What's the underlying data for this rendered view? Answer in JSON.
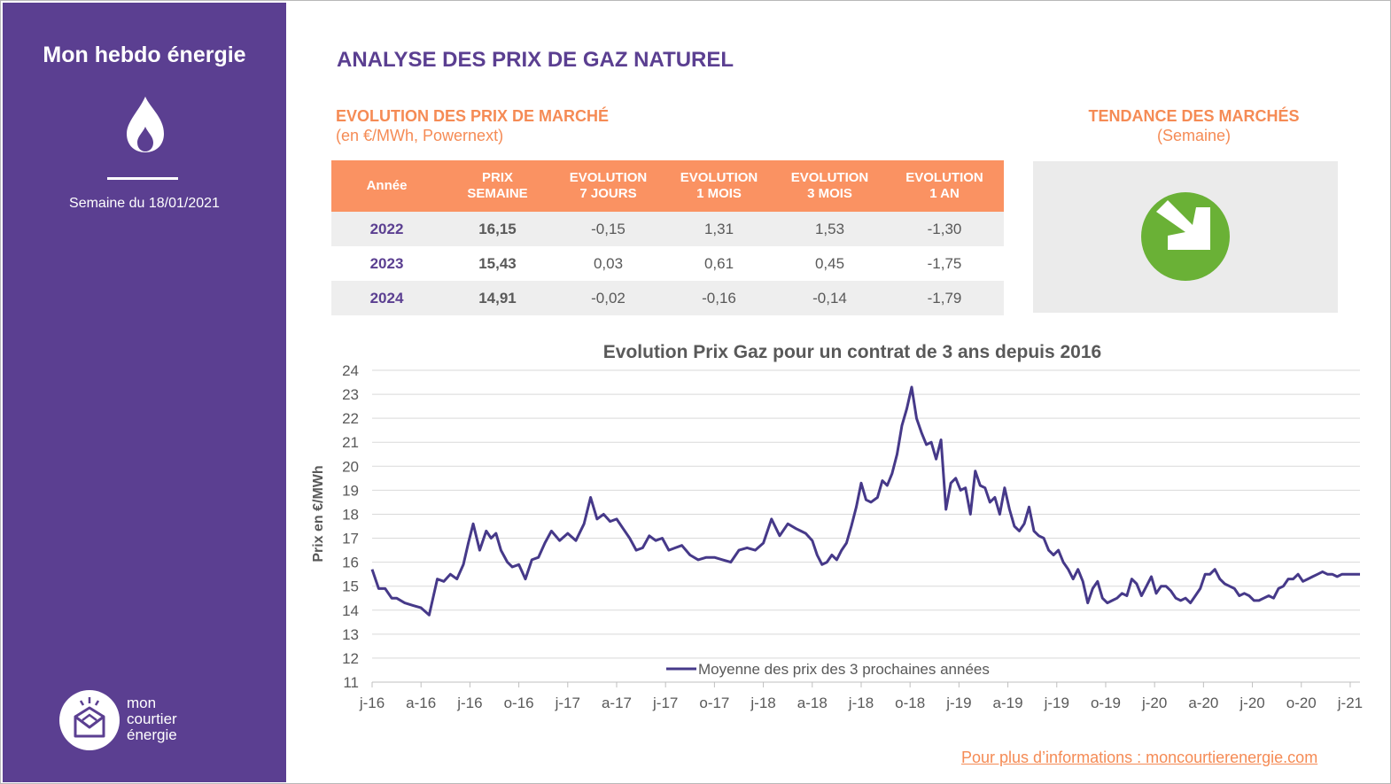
{
  "sidebar": {
    "title": "Mon hebdo énergie",
    "week": "Semaine du 18/01/2021",
    "logo_lines": [
      "mon",
      "courtier",
      "énergie"
    ]
  },
  "page_title": "ANALYSE DES PRIX DE GAZ NATUREL",
  "market_table": {
    "title": "EVOLUTION DES PRIX DE MARCHÉ",
    "subtitle": "(en €/MWh, Powernext)",
    "headers": [
      [
        "Année"
      ],
      [
        "PRIX",
        "SEMAINE"
      ],
      [
        "EVOLUTION",
        "7 JOURS"
      ],
      [
        "EVOLUTION",
        "1 MOIS"
      ],
      [
        "EVOLUTION",
        "3 MOIS"
      ],
      [
        "EVOLUTION",
        "1 AN"
      ]
    ],
    "rows": [
      [
        "2022",
        "16,15",
        "-0,15",
        "1,31",
        "1,53",
        "-1,30"
      ],
      [
        "2023",
        "15,43",
        "0,03",
        "0,61",
        "0,45",
        "-1,75"
      ],
      [
        "2024",
        "14,91",
        "-0,02",
        "-0,16",
        "-0,14",
        "-1,79"
      ]
    ]
  },
  "trend": {
    "title": "TENDANCE DES MARCHÉS",
    "subtitle": "(Semaine)",
    "direction": "down",
    "icon": "arrow-down-right-icon",
    "color": "#6ab136"
  },
  "colors": {
    "brand_purple": "#5b3f91",
    "accent_orange": "#f58b55",
    "table_header": "#fa9262",
    "series_line": "#463989"
  },
  "chart_data": {
    "type": "line",
    "title": "Evolution Prix Gaz pour un contrat de 3 ans depuis 2016",
    "xlabel": "",
    "ylabel": "Prix en €/MWh",
    "ylim": [
      11,
      24
    ],
    "yticks": [
      11,
      12,
      13,
      14,
      15,
      16,
      17,
      18,
      19,
      20,
      21,
      22,
      23,
      24
    ],
    "xticks": [
      "j-16",
      "a-16",
      "j-16",
      "o-16",
      "j-17",
      "a-17",
      "j-17",
      "o-17",
      "j-18",
      "a-18",
      "j-18",
      "o-18",
      "j-19",
      "a-19",
      "j-19",
      "o-19",
      "j-20",
      "a-20",
      "j-20",
      "o-20",
      "j-21"
    ],
    "x_range_months": [
      0,
      60.6
    ],
    "grid": "horizontal",
    "legend": "bottom",
    "series": [
      {
        "name": "Moyenne des prix des 3 prochaines années",
        "x": [
          0,
          0.4,
          0.8,
          1.2,
          1.5,
          2.0,
          2.5,
          3.0,
          3.5,
          4.0,
          4.4,
          4.8,
          5.2,
          5.6,
          5.9,
          6.2,
          6.6,
          7.0,
          7.3,
          7.6,
          7.9,
          8.3,
          8.6,
          9.0,
          9.4,
          9.8,
          10.2,
          10.6,
          11.0,
          11.5,
          12.0,
          12.5,
          13.0,
          13.4,
          13.8,
          14.2,
          14.6,
          15.0,
          15.4,
          15.8,
          16.2,
          16.6,
          17.0,
          17.4,
          17.8,
          18.2,
          18.6,
          19.0,
          19.5,
          20.0,
          20.5,
          21.0,
          21.5,
          22.0,
          22.5,
          23.0,
          23.5,
          24.0,
          24.5,
          25.0,
          25.5,
          26.0,
          26.3,
          26.6,
          27.0,
          27.3,
          27.6,
          27.9,
          28.2,
          28.5,
          28.8,
          29.1,
          29.4,
          29.7,
          30.0,
          30.3,
          30.6,
          31.0,
          31.3,
          31.6,
          31.9,
          32.2,
          32.5,
          32.8,
          33.1,
          33.4,
          33.7,
          34.0,
          34.3,
          34.6,
          34.9,
          35.2,
          35.5,
          35.8,
          36.1,
          36.4,
          36.7,
          37.0,
          37.3,
          37.6,
          37.9,
          38.2,
          38.5,
          38.8,
          39.1,
          39.4,
          39.7,
          40.0,
          40.3,
          40.6,
          40.9,
          41.2,
          41.5,
          41.8,
          42.1,
          42.4,
          42.7,
          43.0,
          43.3,
          43.6,
          43.9,
          44.2,
          44.5,
          44.8,
          45.1,
          45.4,
          45.7,
          46.0,
          46.3,
          46.6,
          46.9,
          47.2,
          47.5,
          47.8,
          48.1,
          48.4,
          48.7,
          49.0,
          49.3,
          49.6,
          49.9,
          50.2,
          50.5,
          50.8,
          51.1,
          51.4,
          51.7,
          52.0,
          52.3,
          52.6,
          52.9,
          53.2,
          53.5,
          53.8,
          54.1,
          54.4,
          54.7,
          55.0,
          55.3,
          55.6,
          55.9,
          56.2,
          56.5,
          56.8,
          57.1,
          57.4,
          57.7,
          58.0,
          58.3,
          58.6,
          58.9,
          59.2,
          59.5,
          59.8,
          60.1,
          60.6
        ],
        "values": [
          15.7,
          14.9,
          14.9,
          14.5,
          14.5,
          14.3,
          14.2,
          14.1,
          13.8,
          15.3,
          15.2,
          15.5,
          15.3,
          15.9,
          16.8,
          17.6,
          16.5,
          17.3,
          17.0,
          17.2,
          16.5,
          16.0,
          15.8,
          15.9,
          15.3,
          16.1,
          16.2,
          16.8,
          17.3,
          16.9,
          17.2,
          16.9,
          17.6,
          18.7,
          17.8,
          18.0,
          17.7,
          17.8,
          17.4,
          17.0,
          16.5,
          16.6,
          17.1,
          16.9,
          17.0,
          16.5,
          16.6,
          16.7,
          16.3,
          16.1,
          16.2,
          16.2,
          16.1,
          16.0,
          16.5,
          16.6,
          16.5,
          16.8,
          17.8,
          17.1,
          17.6,
          17.4,
          17.3,
          17.2,
          16.9,
          16.3,
          15.9,
          16.0,
          16.3,
          16.1,
          16.5,
          16.8,
          17.5,
          18.3,
          19.3,
          18.6,
          18.5,
          18.7,
          19.4,
          19.2,
          19.7,
          20.5,
          21.7,
          22.4,
          23.3,
          22.0,
          21.4,
          20.9,
          21.0,
          20.3,
          21.1,
          18.2,
          19.3,
          19.5,
          19.0,
          19.1,
          18.0,
          19.8,
          19.2,
          19.1,
          18.5,
          18.7,
          18.0,
          19.1,
          18.2,
          17.5,
          17.3,
          17.6,
          18.3,
          17.3,
          17.1,
          17.0,
          16.5,
          16.3,
          16.5,
          16.0,
          15.7,
          15.3,
          15.7,
          15.2,
          14.3,
          14.9,
          15.2,
          14.5,
          14.3,
          14.4,
          14.5,
          14.7,
          14.6,
          15.3,
          15.1,
          14.6,
          15.0,
          15.4,
          14.7,
          15.0,
          15.0,
          14.8,
          14.5,
          14.4,
          14.5,
          14.3,
          14.6,
          14.9,
          15.5,
          15.5,
          15.7,
          15.3,
          15.1,
          15.0,
          14.9,
          14.6,
          14.7,
          14.6,
          14.4,
          14.4,
          14.5,
          14.6,
          14.5,
          14.9,
          15.0,
          15.3,
          15.3,
          15.5,
          15.2,
          15.3,
          15.4,
          15.5,
          15.6,
          15.5,
          15.5,
          15.4,
          15.5,
          15.5,
          15.5,
          15.5
        ]
      }
    ]
  },
  "footer": {
    "link_text": "Pour plus d’informations : moncourtierenergie.com"
  }
}
